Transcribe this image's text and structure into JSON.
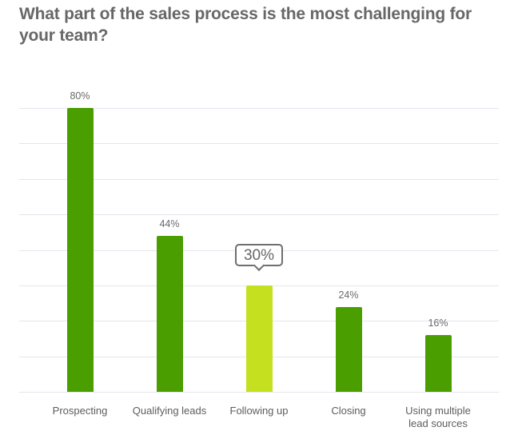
{
  "title": "What part of the sales process is the most challenging for your team?",
  "colors": {
    "bar": "#4a9e00",
    "highlight": "#c5e01e",
    "grid": "#e4e6ee",
    "text": "#676767"
  },
  "bars": [
    {
      "label": "Prospecting",
      "value": 80,
      "value_label": "80%",
      "highlight": false
    },
    {
      "label": "Qualifying leads",
      "value": 44,
      "value_label": "44%",
      "highlight": false
    },
    {
      "label": "Following up",
      "value": 30,
      "value_label": "30%",
      "highlight": true
    },
    {
      "label": "Closing",
      "value": 24,
      "value_label": "24%",
      "highlight": false
    },
    {
      "label": "Using multiple lead sources",
      "value": 16,
      "value_label": "16%",
      "highlight": false
    }
  ],
  "chart_data": {
    "type": "bar",
    "title": "What part of the sales process is the most challenging for your team?",
    "categories": [
      "Prospecting",
      "Qualifying leads",
      "Following up",
      "Closing",
      "Using multiple lead sources"
    ],
    "values": [
      80,
      44,
      30,
      24,
      16
    ],
    "data_labels": [
      "80%",
      "44%",
      "30%",
      "24%",
      "16%"
    ],
    "highlighted_category": "Following up",
    "xlabel": "",
    "ylabel": "",
    "ylim": [
      0,
      80
    ],
    "grid": true,
    "grid_step": 10,
    "legend": "none"
  }
}
